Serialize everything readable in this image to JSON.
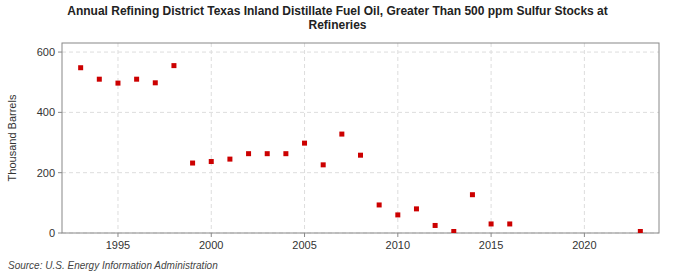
{
  "chart_data": {
    "type": "scatter",
    "title": "Annual Refining District Texas Inland Distillate Fuel Oil, Greater Than 500 ppm Sulfur Stocks at\nRefineries",
    "ylabel": "Thousand Barrels",
    "source": "Source: U.S. Energy Information Administration",
    "x": [
      1993,
      1994,
      1995,
      1996,
      1997,
      1998,
      1999,
      2000,
      2001,
      2002,
      2003,
      2004,
      2005,
      2006,
      2007,
      2008,
      2009,
      2010,
      2011,
      2012,
      2013,
      2014,
      2015,
      2016,
      2023
    ],
    "values": [
      548,
      510,
      497,
      510,
      498,
      555,
      232,
      237,
      245,
      263,
      263,
      263,
      298,
      226,
      328,
      258,
      93,
      60,
      80,
      25,
      5,
      127,
      30,
      30,
      5
    ],
    "color": "#cc0000",
    "marker": "square",
    "xlim": [
      1992,
      2024
    ],
    "ylim": [
      0,
      630
    ],
    "xticks": [
      1995,
      2000,
      2005,
      2010,
      2015,
      2020
    ],
    "yticks": [
      0,
      200,
      400,
      600
    ],
    "grid": true
  }
}
